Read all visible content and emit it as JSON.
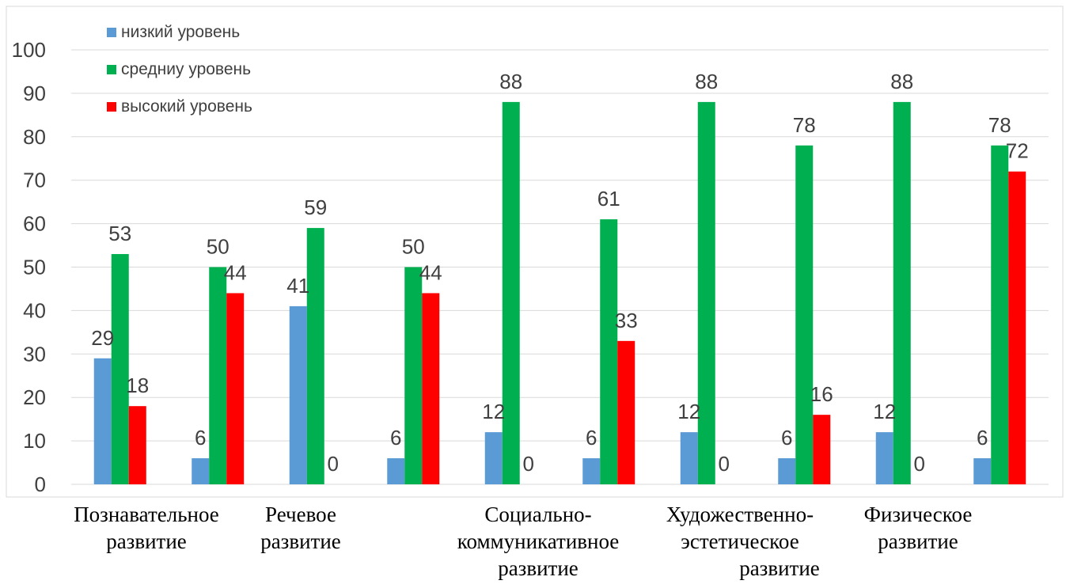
{
  "chart_data": {
    "type": "bar",
    "title": "",
    "xlabel": "",
    "ylabel": "",
    "ylim": [
      0,
      100
    ],
    "y_ticks": [
      0,
      10,
      20,
      30,
      40,
      50,
      60,
      70,
      80,
      90,
      100
    ],
    "grid": true,
    "legend_position": "top-left",
    "category_groups": [
      [
        "Познавательное",
        "развитие"
      ],
      [
        "Речевое",
        "развитие"
      ],
      [
        "Социально-",
        "коммуникативное",
        "развитие"
      ],
      [
        "Художественно-",
        "эстетическое",
        "развитие"
      ],
      [
        "Физическое",
        "развитие"
      ]
    ],
    "series": [
      {
        "name": "низкий уровень",
        "color": "#5b9bd5",
        "values": [
          29,
          6,
          41,
          6,
          12,
          6,
          12,
          6,
          12,
          6
        ]
      },
      {
        "name": "средниу уровень",
        "color": "#00b050",
        "values": [
          53,
          50,
          59,
          50,
          88,
          61,
          88,
          78,
          88,
          78
        ]
      },
      {
        "name": "высокий уровень",
        "color": "#ff0000",
        "values": [
          18,
          44,
          0,
          44,
          0,
          33,
          0,
          16,
          0,
          72
        ]
      }
    ]
  }
}
